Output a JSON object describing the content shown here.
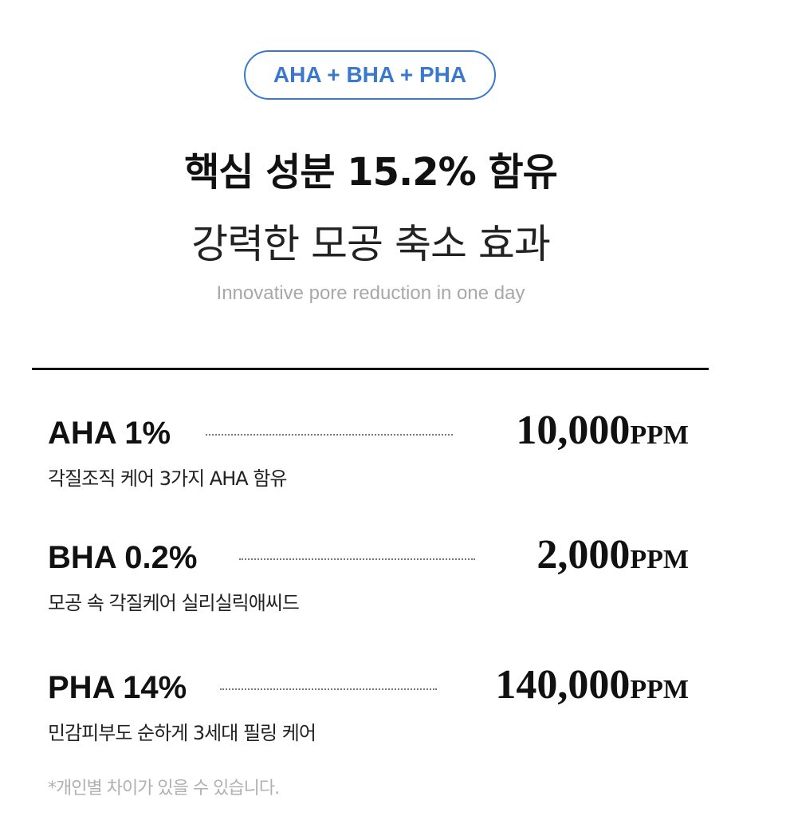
{
  "badge": "AHA + BHA + PHA",
  "title": "핵심 성분 15.2% 함유",
  "subtitle": "강력한 모공 축소 효과",
  "subtitle_en": "Innovative pore reduction in one day",
  "ingredients": [
    {
      "name": "AHA 1%",
      "value": "10,000",
      "unit": "PPM",
      "desc": "각질조직 케어 3가지 AHA 함유"
    },
    {
      "name": "BHA 0.2%",
      "value": "2,000",
      "unit": "PPM",
      "desc": "모공 속 각질케어 실리실릭애씨드"
    },
    {
      "name": "PHA 14%",
      "value": "140,000",
      "unit": "PPM",
      "desc": "민감피부도 순하게 3세대 필링 케어"
    }
  ],
  "footnote": "*개인별 차이가 있을 수 있습니다.",
  "colors": {
    "accent": "#3a78d0"
  }
}
